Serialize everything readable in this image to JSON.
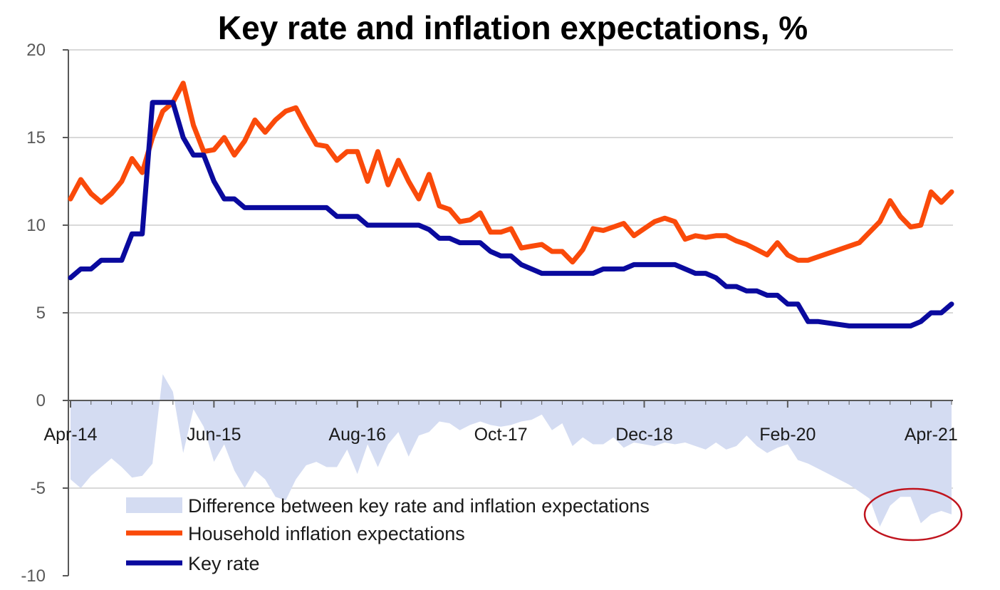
{
  "chart_data": {
    "type": "line",
    "title": "Key rate and inflation expectations, %",
    "xlabel": "",
    "ylabel": "",
    "ylim": [
      -10,
      20
    ],
    "yticks": [
      "20",
      "15",
      "10",
      "5",
      "0",
      "-5",
      "-10"
    ],
    "xtick_labels": [
      "Apr-14",
      "Jun-15",
      "Aug-16",
      "Oct-17",
      "Dec-18",
      "Feb-20",
      "Apr-21"
    ],
    "x_range_months": [
      0,
      86
    ],
    "grid": "horizontal",
    "legend_position": "bottom-left",
    "annotation": "red ellipse highlighting the most negative difference in early 2021",
    "colors": {
      "key_rate": "#0a0a9e",
      "inflation_expectations": "#fa4a0a",
      "difference": "#d4dcf2",
      "annotation": "#c0141e",
      "grid": "#d9d9d9"
    },
    "series": [
      {
        "name": "Difference between key rate and inflation expectations",
        "kind": "area",
        "points": [
          [
            0,
            -4.5
          ],
          [
            1,
            -5.0
          ],
          [
            2,
            -4.3
          ],
          [
            3,
            -3.8
          ],
          [
            4,
            -3.3
          ],
          [
            5,
            -3.8
          ],
          [
            6,
            -4.4
          ],
          [
            7,
            -4.3
          ],
          [
            8,
            -3.6
          ],
          [
            9,
            1.5
          ],
          [
            10,
            0.5
          ],
          [
            11,
            -3.0
          ],
          [
            12,
            -0.5
          ],
          [
            13,
            -1.5
          ],
          [
            14,
            -3.5
          ],
          [
            15,
            -2.5
          ],
          [
            16,
            -4.0
          ],
          [
            17,
            -5.0
          ],
          [
            18,
            -4.0
          ],
          [
            19,
            -4.5
          ],
          [
            20,
            -5.5
          ],
          [
            21,
            -5.7
          ],
          [
            22,
            -4.5
          ],
          [
            23,
            -3.7
          ],
          [
            24,
            -3.5
          ],
          [
            25,
            -3.8
          ],
          [
            26,
            -3.8
          ],
          [
            27,
            -2.8
          ],
          [
            28,
            -4.2
          ],
          [
            29,
            -2.5
          ],
          [
            30,
            -3.8
          ],
          [
            31,
            -2.5
          ],
          [
            32,
            -1.8
          ],
          [
            33,
            -3.2
          ],
          [
            34,
            -2.0
          ],
          [
            35,
            -1.8
          ],
          [
            36,
            -1.2
          ],
          [
            37,
            -1.3
          ],
          [
            38,
            -1.7
          ],
          [
            39,
            -1.4
          ],
          [
            40,
            -1.2
          ],
          [
            41,
            -1.4
          ],
          [
            42,
            -1.5
          ],
          [
            43,
            -1.4
          ],
          [
            44,
            -1.2
          ],
          [
            45,
            -1.1
          ],
          [
            46,
            -0.8
          ],
          [
            47,
            -1.7
          ],
          [
            48,
            -1.3
          ],
          [
            49,
            -2.6
          ],
          [
            50,
            -2.1
          ],
          [
            51,
            -2.5
          ],
          [
            52,
            -2.5
          ],
          [
            53,
            -2.1
          ],
          [
            54,
            -2.7
          ],
          [
            55,
            -2.4
          ],
          [
            56,
            -2.5
          ],
          [
            57,
            -2.6
          ],
          [
            58,
            -2.4
          ],
          [
            59,
            -2.5
          ],
          [
            60,
            -2.4
          ],
          [
            61,
            -2.6
          ],
          [
            62,
            -2.8
          ],
          [
            63,
            -2.4
          ],
          [
            64,
            -2.8
          ],
          [
            65,
            -2.6
          ],
          [
            66,
            -2.0
          ],
          [
            67,
            -2.6
          ],
          [
            68,
            -3.0
          ],
          [
            69,
            -2.7
          ],
          [
            70,
            -2.5
          ],
          [
            71,
            -3.4
          ],
          [
            72,
            -3.6
          ],
          [
            73,
            -3.9
          ],
          [
            74,
            -4.2
          ],
          [
            75,
            -4.5
          ],
          [
            76,
            -4.8
          ],
          [
            77,
            -5.2
          ],
          [
            78,
            -5.6
          ],
          [
            79,
            -7.2
          ],
          [
            80,
            -6.0
          ],
          [
            81,
            -5.5
          ],
          [
            82,
            -5.5
          ],
          [
            83,
            -7.0
          ],
          [
            84,
            -6.5
          ],
          [
            85,
            -6.3
          ],
          [
            86,
            -6.5
          ]
        ]
      },
      {
        "name": "Household inflation expectations",
        "kind": "line",
        "points": [
          [
            0,
            11.5
          ],
          [
            1,
            12.6
          ],
          [
            2,
            11.8
          ],
          [
            3,
            11.3
          ],
          [
            4,
            11.8
          ],
          [
            5,
            12.5
          ],
          [
            6,
            13.8
          ],
          [
            7,
            13.0
          ],
          [
            8,
            15.0
          ],
          [
            9,
            16.5
          ],
          [
            10,
            17.0
          ],
          [
            11,
            18.1
          ],
          [
            12,
            15.7
          ],
          [
            13,
            14.2
          ],
          [
            14,
            14.3
          ],
          [
            15,
            15.0
          ],
          [
            16,
            14.0
          ],
          [
            17,
            14.8
          ],
          [
            18,
            16.0
          ],
          [
            19,
            15.3
          ],
          [
            20,
            16.0
          ],
          [
            21,
            16.5
          ],
          [
            22,
            16.7
          ],
          [
            23,
            15.6
          ],
          [
            24,
            14.6
          ],
          [
            25,
            14.5
          ],
          [
            26,
            13.7
          ],
          [
            27,
            14.2
          ],
          [
            28,
            14.2
          ],
          [
            29,
            12.5
          ],
          [
            30,
            14.2
          ],
          [
            31,
            12.3
          ],
          [
            32,
            13.7
          ],
          [
            33,
            12.5
          ],
          [
            34,
            11.5
          ],
          [
            35,
            12.9
          ],
          [
            36,
            11.1
          ],
          [
            37,
            10.9
          ],
          [
            38,
            10.2
          ],
          [
            39,
            10.3
          ],
          [
            40,
            10.7
          ],
          [
            41,
            9.6
          ],
          [
            42,
            9.6
          ],
          [
            43,
            9.8
          ],
          [
            44,
            8.7
          ],
          [
            45,
            8.8
          ],
          [
            46,
            8.9
          ],
          [
            47,
            8.5
          ],
          [
            48,
            8.5
          ],
          [
            49,
            7.9
          ],
          [
            50,
            8.6
          ],
          [
            51,
            9.8
          ],
          [
            52,
            9.7
          ],
          [
            53,
            9.9
          ],
          [
            54,
            10.1
          ],
          [
            55,
            9.4
          ],
          [
            56,
            9.8
          ],
          [
            57,
            10.2
          ],
          [
            58,
            10.4
          ],
          [
            59,
            10.2
          ],
          [
            60,
            9.2
          ],
          [
            61,
            9.4
          ],
          [
            62,
            9.3
          ],
          [
            63,
            9.4
          ],
          [
            64,
            9.4
          ],
          [
            65,
            9.1
          ],
          [
            66,
            8.9
          ],
          [
            67,
            8.6
          ],
          [
            68,
            8.3
          ],
          [
            69,
            9.0
          ],
          [
            70,
            8.3
          ],
          [
            71,
            8.0
          ],
          [
            72,
            8.0
          ],
          [
            77,
            9.0
          ],
          [
            78,
            9.6
          ],
          [
            79,
            10.2
          ],
          [
            80,
            11.4
          ],
          [
            81,
            10.5
          ],
          [
            82,
            9.9
          ],
          [
            83,
            10.0
          ],
          [
            84,
            11.9
          ],
          [
            85,
            11.3
          ],
          [
            86,
            11.9
          ]
        ]
      },
      {
        "name": "Key rate",
        "kind": "line",
        "points": [
          [
            0,
            7.0
          ],
          [
            1,
            7.5
          ],
          [
            2,
            7.5
          ],
          [
            3,
            8.0
          ],
          [
            4,
            8.0
          ],
          [
            5,
            8.0
          ],
          [
            6,
            9.5
          ],
          [
            7,
            9.5
          ],
          [
            8,
            17.0
          ],
          [
            9,
            17.0
          ],
          [
            10,
            17.0
          ],
          [
            11,
            15.0
          ],
          [
            12,
            14.0
          ],
          [
            13,
            14.0
          ],
          [
            14,
            12.5
          ],
          [
            15,
            11.5
          ],
          [
            16,
            11.5
          ],
          [
            17,
            11.0
          ],
          [
            18,
            11.0
          ],
          [
            25,
            11.0
          ],
          [
            26,
            10.5
          ],
          [
            28,
            10.5
          ],
          [
            29,
            10.0
          ],
          [
            34,
            10.0
          ],
          [
            35,
            9.75
          ],
          [
            36,
            9.25
          ],
          [
            37,
            9.25
          ],
          [
            38,
            9.0
          ],
          [
            40,
            9.0
          ],
          [
            41,
            8.5
          ],
          [
            42,
            8.25
          ],
          [
            43,
            8.25
          ],
          [
            44,
            7.75
          ],
          [
            45,
            7.5
          ],
          [
            46,
            7.25
          ],
          [
            51,
            7.25
          ],
          [
            52,
            7.5
          ],
          [
            54,
            7.5
          ],
          [
            55,
            7.75
          ],
          [
            59,
            7.75
          ],
          [
            60,
            7.5
          ],
          [
            61,
            7.25
          ],
          [
            62,
            7.25
          ],
          [
            63,
            7.0
          ],
          [
            64,
            6.5
          ],
          [
            65,
            6.5
          ],
          [
            66,
            6.25
          ],
          [
            67,
            6.25
          ],
          [
            68,
            6.0
          ],
          [
            69,
            6.0
          ],
          [
            70,
            5.5
          ],
          [
            71,
            5.5
          ],
          [
            72,
            4.5
          ],
          [
            73,
            4.5
          ],
          [
            76,
            4.25
          ],
          [
            82,
            4.25
          ],
          [
            83,
            4.5
          ],
          [
            84,
            5.0
          ],
          [
            85,
            5.0
          ],
          [
            86,
            5.5
          ]
        ]
      }
    ]
  }
}
